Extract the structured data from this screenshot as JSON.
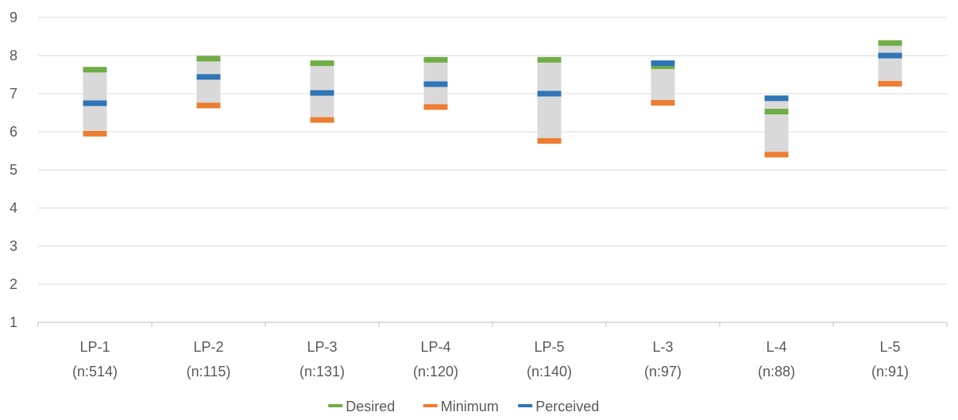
{
  "chart_data": {
    "type": "bar",
    "title": "",
    "xlabel": "",
    "ylabel": "",
    "ylim": [
      1,
      9
    ],
    "yticks": [
      1,
      2,
      3,
      4,
      5,
      6,
      7,
      8,
      9
    ],
    "grid": true,
    "legend_position": "bottom",
    "categories": [
      {
        "name": "LP-1",
        "n": "(n:514)"
      },
      {
        "name": "LP-2",
        "n": "(n:115)"
      },
      {
        "name": "LP-3",
        "n": "(n:131)"
      },
      {
        "name": "LP-4",
        "n": "(n:120)"
      },
      {
        "name": "LP-5",
        "n": "(n:140)"
      },
      {
        "name": "L-3",
        "n": "(n:97)"
      },
      {
        "name": "L-4",
        "n": "(n:88)"
      },
      {
        "name": "L-5",
        "n": "(n:91)"
      }
    ],
    "series": [
      {
        "name": "Desired",
        "color": "#70AD47",
        "values": [
          7.63,
          7.92,
          7.8,
          7.89,
          7.89,
          7.72,
          6.53,
          8.33
        ]
      },
      {
        "name": "Minimum",
        "color": "#ED7D31",
        "values": [
          5.95,
          6.69,
          6.31,
          6.65,
          5.76,
          6.76,
          5.4,
          7.26
        ]
      },
      {
        "name": "Perceived",
        "color": "#2E75B6",
        "values": [
          6.75,
          7.44,
          7.02,
          7.25,
          7.0,
          7.8,
          6.88,
          8.0
        ]
      }
    ],
    "range_band_color": "#D9D9D9"
  }
}
